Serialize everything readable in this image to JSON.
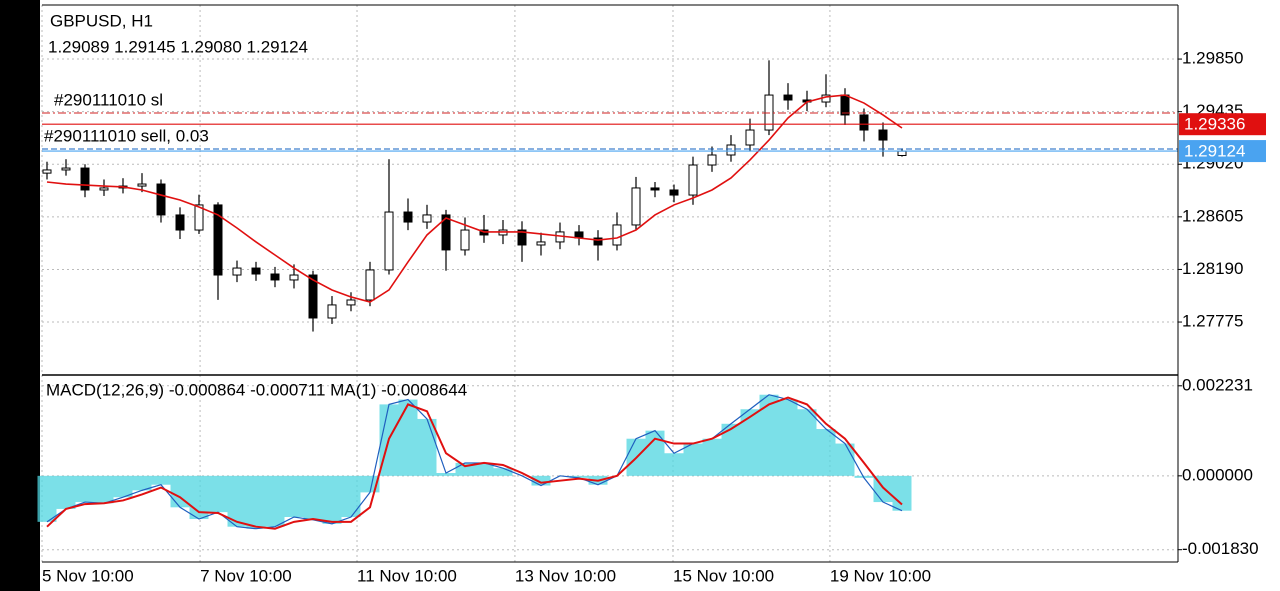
{
  "chart_data": {
    "type": "candlestick",
    "title": "GBPUSD, H1",
    "ohlc_label": "1.29089 1.29145 1.29080 1.29124",
    "xticks": [
      {
        "value": 0,
        "label": "5 Nov 10:00"
      },
      {
        "value": 8.32,
        "label": "7 Nov 10:00"
      },
      {
        "value": 16.58,
        "label": "11 Nov 10:00"
      },
      {
        "value": 24.89,
        "label": "13 Nov 10:00"
      },
      {
        "value": 33.21,
        "label": "15 Nov 10:00"
      },
      {
        "value": 41.47,
        "label": "19 Nov 10:00"
      }
    ],
    "ylim": [
      1.27365,
      1.30316
    ],
    "yticks": [
      {
        "value": 1.2985,
        "label": "1.29850"
      },
      {
        "value": 1.29435,
        "label": "1.29435"
      },
      {
        "value": 1.2902,
        "label": "1.29020"
      },
      {
        "value": 1.28605,
        "label": "1.28605"
      },
      {
        "value": 1.2819,
        "label": "1.28190"
      },
      {
        "value": 1.27775,
        "label": "1.27775"
      }
    ],
    "grid": true,
    "open": [
      1.2895,
      1.28975,
      1.2899,
      1.28817,
      1.28833,
      1.28848,
      1.28864,
      1.2862,
      1.28501,
      1.28699,
      1.28146,
      1.28201,
      1.28154,
      1.28107,
      1.28146,
      1.27807,
      1.2791,
      1.27949,
      1.28186,
      1.28643,
      1.28564,
      1.2862,
      1.28344,
      1.28501,
      1.28462,
      1.28501,
      1.28383,
      1.28407,
      1.28486,
      1.28438,
      1.28383,
      1.28541,
      1.28833,
      1.28817,
      1.28777,
      1.29014,
      1.29093,
      1.29172,
      1.2929,
      1.29566,
      1.29527,
      1.29511,
      1.29566,
      1.29409,
      1.2929,
      1.29089
    ],
    "high": [
      1.2904,
      1.2906,
      1.2902,
      1.289,
      1.2891,
      1.2895,
      1.289,
      1.2868,
      1.2878,
      1.2872,
      1.2826,
      1.2825,
      1.2821,
      1.2823,
      1.2818,
      1.2798,
      1.2801,
      1.2825,
      1.2906,
      1.2875,
      1.287,
      1.2866,
      1.286,
      1.2862,
      1.2858,
      1.2857,
      1.2848,
      1.2856,
      1.2854,
      1.285,
      1.2864,
      1.2892,
      1.2888,
      1.2886,
      1.2908,
      1.2916,
      1.2925,
      1.2938,
      1.2984,
      1.2966,
      1.296,
      1.2973,
      1.2962,
      1.2946,
      1.2935,
      1.29145
    ],
    "low": [
      1.289,
      1.2893,
      1.2876,
      1.2877,
      1.2879,
      1.288,
      1.2856,
      1.2843,
      1.2847,
      1.2795,
      1.2809,
      1.281,
      1.2805,
      1.2804,
      1.277,
      1.2776,
      1.2786,
      1.279,
      1.2815,
      1.285,
      1.2851,
      1.2818,
      1.283,
      1.284,
      1.2839,
      1.2825,
      1.283,
      1.2835,
      1.2838,
      1.2826,
      1.2834,
      1.285,
      1.2876,
      1.2872,
      1.287,
      1.2896,
      1.2904,
      1.2912,
      1.2925,
      1.2945,
      1.2944,
      1.2947,
      1.2933,
      1.292,
      1.2908,
      1.2908
    ],
    "close": [
      1.28975,
      1.2899,
      1.28817,
      1.28833,
      1.28848,
      1.28864,
      1.2862,
      1.28501,
      1.28699,
      1.28146,
      1.28201,
      1.28154,
      1.28107,
      1.28146,
      1.27807,
      1.2791,
      1.27949,
      1.28186,
      1.28643,
      1.28564,
      1.2862,
      1.28344,
      1.28501,
      1.28462,
      1.28501,
      1.28383,
      1.28407,
      1.28486,
      1.28438,
      1.28383,
      1.28541,
      1.28833,
      1.28817,
      1.28777,
      1.29014,
      1.29093,
      1.29172,
      1.2929,
      1.29566,
      1.29527,
      1.29511,
      1.29566,
      1.29409,
      1.2929,
      1.29211,
      1.29124
    ],
    "candle_color": "#000000",
    "ma": {
      "color": "#e01010",
      "values": [
        1.2888,
        1.28864,
        1.28856,
        1.28848,
        1.28841,
        1.28817,
        1.28777,
        1.28738,
        1.28683,
        1.2862,
        1.28517,
        1.28407,
        1.28304,
        1.28201,
        1.28107,
        1.28028,
        1.27973,
        1.27933,
        1.28028,
        1.28249,
        1.28462,
        1.28596,
        1.28541,
        1.28486,
        1.28486,
        1.28486,
        1.2847,
        1.28454,
        1.28438,
        1.28422,
        1.28438,
        1.28501,
        1.2862,
        1.28699,
        1.28754,
        1.28817,
        1.28912,
        1.29054,
        1.29211,
        1.29385,
        1.29511,
        1.29551,
        1.29566,
        1.29503,
        1.29409,
        1.29306
      ]
    },
    "order_lines": [
      {
        "name": "#290111010 sl",
        "value": 1.29424,
        "color": "#d02020",
        "style": "dashdot"
      },
      {
        "name": "#290111010 sell, 0.03",
        "value": 1.2914,
        "color": "#1060c0",
        "style": "dashed"
      }
    ],
    "ask": {
      "value": 1.29336,
      "color": "#e01010"
    },
    "bid": {
      "value": 1.29124,
      "color": "#4aa3f0"
    },
    "indicator": {
      "label": "MACD(12,26,9) -0.000864 -0.000711 MA(1) -0.0008644",
      "ylim": [
        -0.002135,
        0.002474
      ],
      "yticks": [
        0.002231,
        {
          "value": 0,
          "label": "0.000000"
        },
        {
          "value": -0.00183,
          "label": "-0.001830"
        }
      ],
      "histogram": {
        "color": "#4fd6e0",
        "line_color": "#1f5fbf",
        "values": [
          -0.00114,
          -0.00082,
          -0.00065,
          -0.00068,
          -0.00053,
          -0.00036,
          -0.00022,
          -0.00078,
          -0.00107,
          -0.0009,
          -0.00126,
          -0.00131,
          -0.00126,
          -0.00102,
          -0.00109,
          -0.00119,
          -0.00102,
          -0.00041,
          0.00177,
          0.00189,
          0.00141,
          7e-05,
          0.00032,
          0.00032,
          0.00019,
          0,
          -0.00024,
          0,
          -5e-05,
          -0.00022,
          0,
          0.00092,
          0.00112,
          0.00056,
          0.0008,
          0.00092,
          0.00129,
          0.00165,
          0.00201,
          0.00189,
          0.00165,
          0.00116,
          0.0008,
          -5e-05,
          -0.00065,
          -0.000864
        ]
      },
      "signal": {
        "color": "#e01010",
        "values": [
          -0.00126,
          -0.00082,
          -0.0007,
          -0.00068,
          -0.00061,
          -0.00046,
          -0.00029,
          -0.00053,
          -0.0009,
          -0.00092,
          -0.00114,
          -0.00126,
          -0.00131,
          -0.00114,
          -0.00107,
          -0.00114,
          -0.00114,
          -0.00078,
          0.00092,
          0.00177,
          0.0016,
          0.00056,
          0.00024,
          0.00032,
          0.00027,
          7e-05,
          -0.00017,
          -0.00012,
          -7e-05,
          -0.00012,
          0,
          0.00044,
          0.00092,
          0.0008,
          0.0008,
          0.00092,
          0.00116,
          0.00146,
          0.00177,
          0.00194,
          0.00177,
          0.00129,
          0.00092,
          0.00032,
          -0.00029,
          -0.000711
        ]
      }
    }
  }
}
